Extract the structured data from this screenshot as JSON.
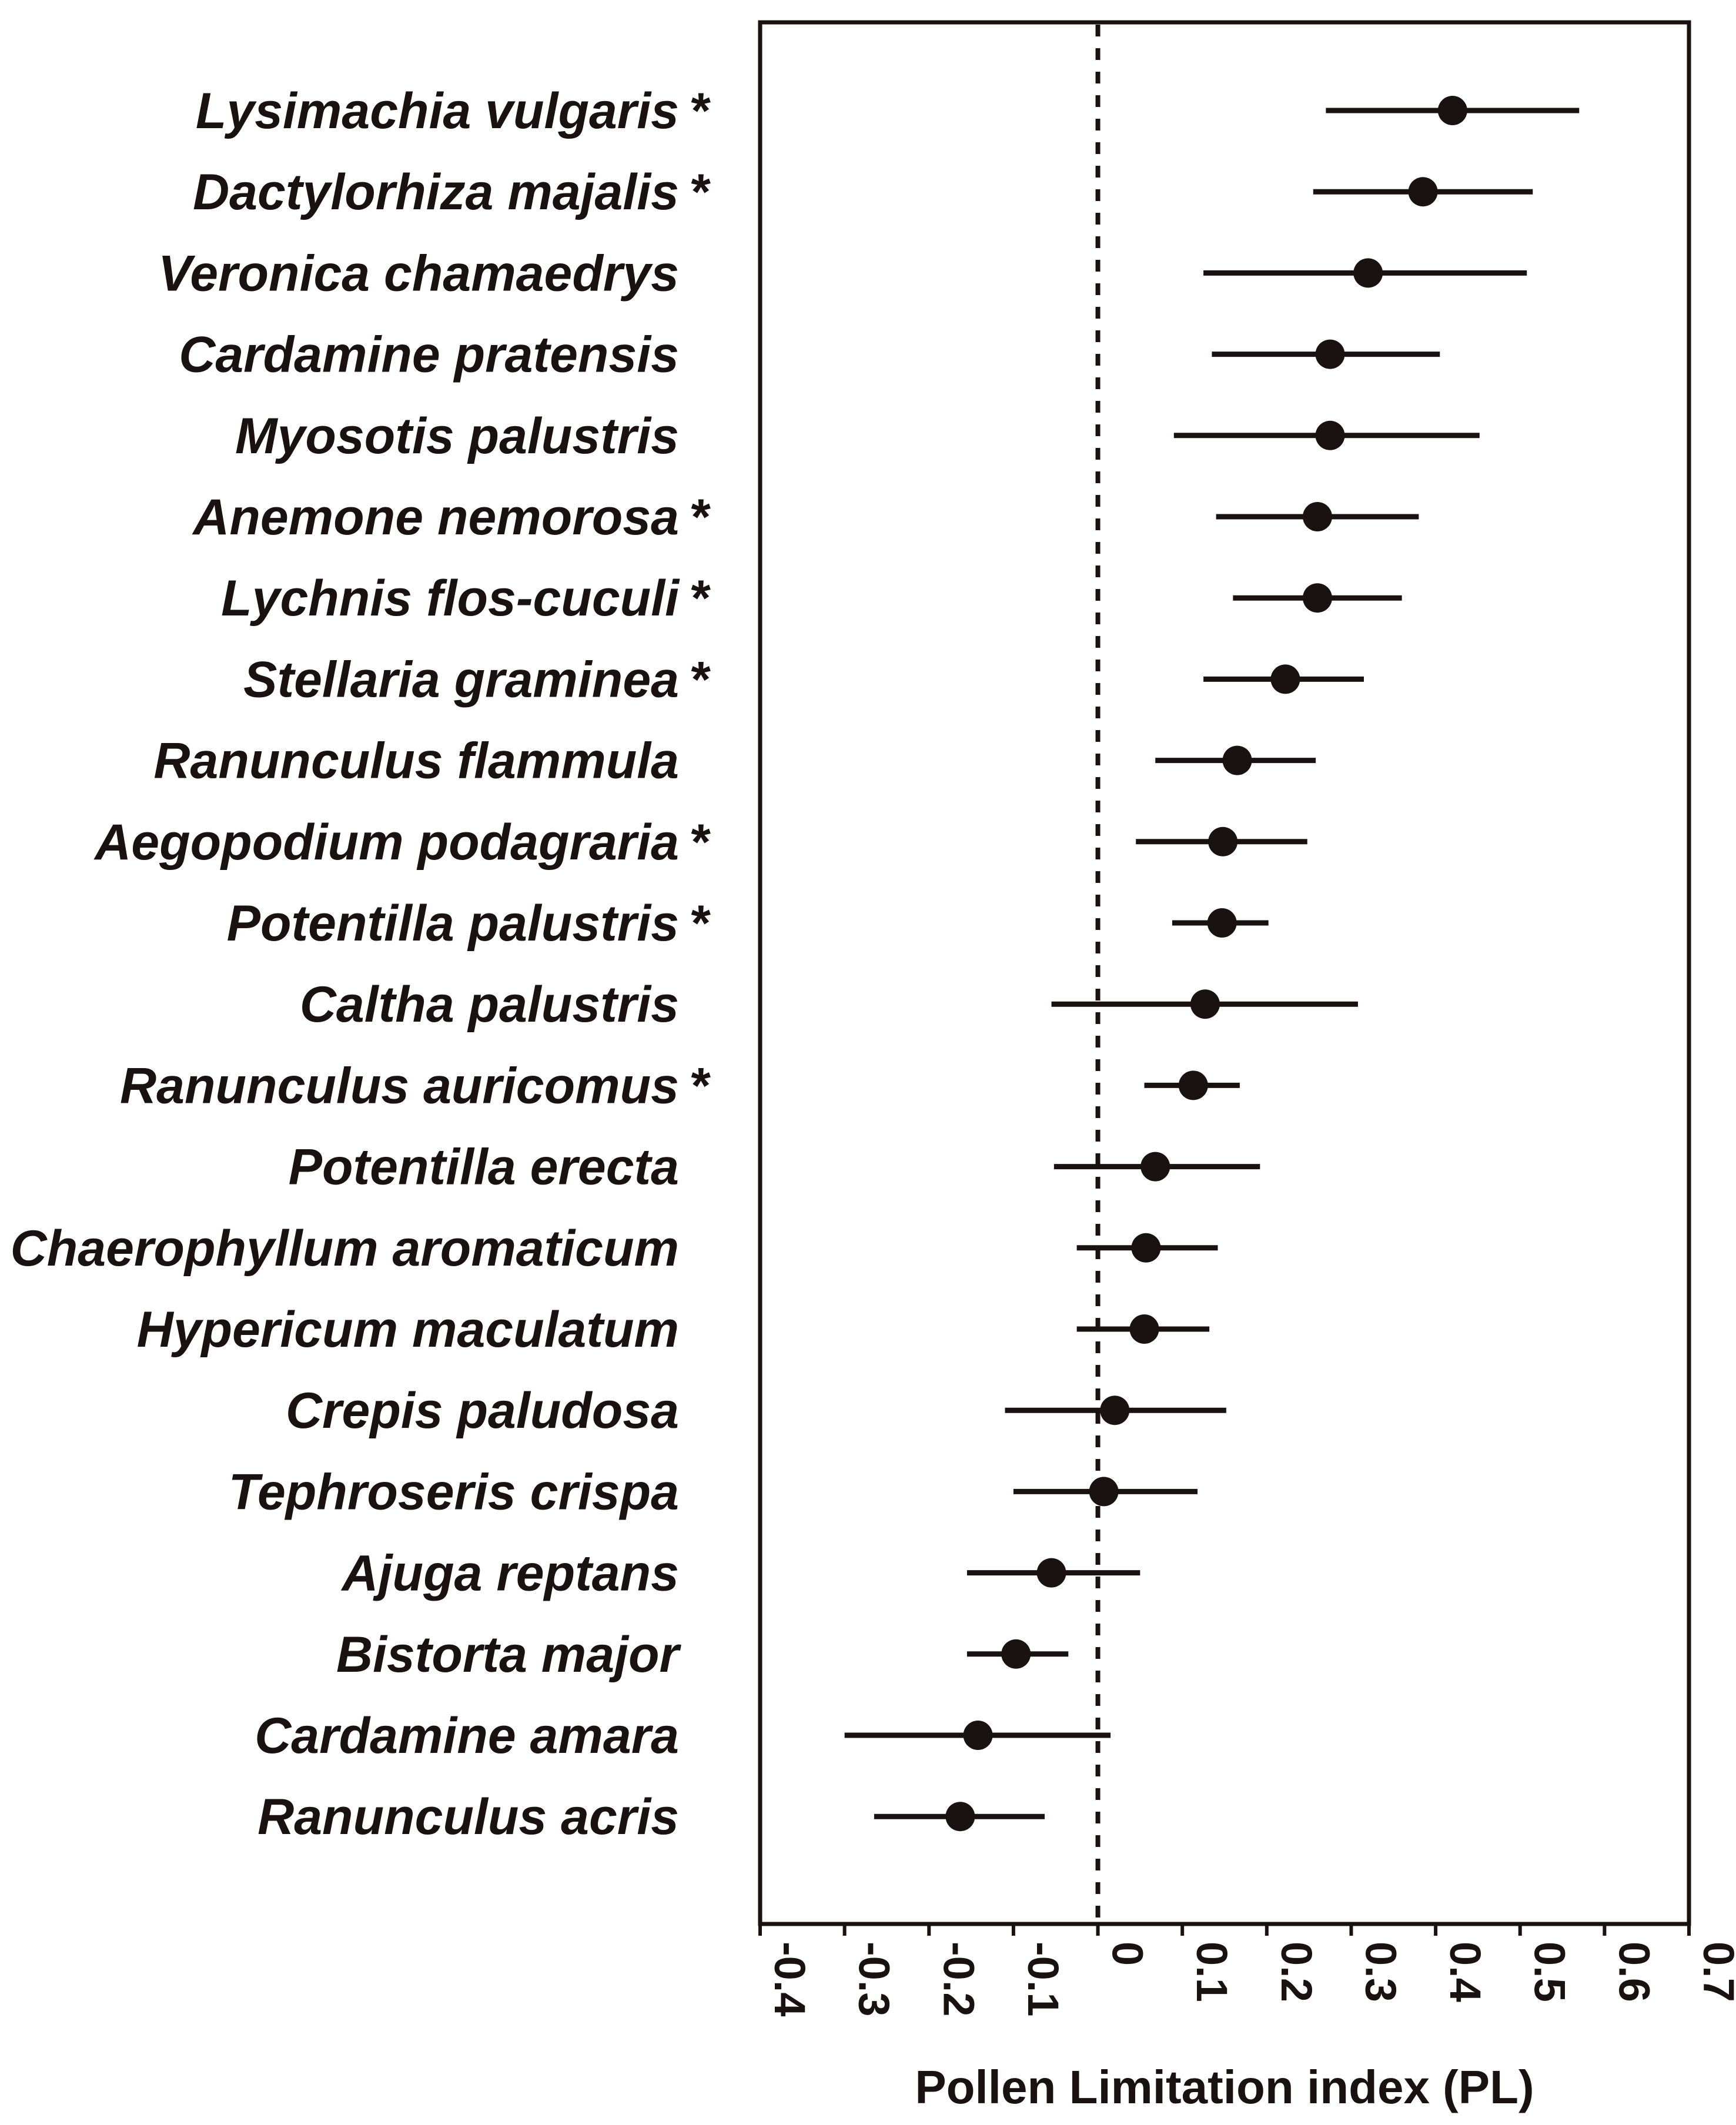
{
  "chart_data": {
    "type": "forest-plot",
    "title": "",
    "xlabel": "Pollen Limitation index (PL)",
    "ylabel": "",
    "xlim": [
      -0.4,
      0.7
    ],
    "xticks": [
      -0.4,
      -0.3,
      -0.2,
      -0.1,
      0,
      0.1,
      0.2,
      0.3,
      0.4,
      0.5,
      0.6,
      0.7
    ],
    "xtick_labels": [
      "-0.4",
      "-0.3",
      "-0.2",
      "-0.1",
      "0",
      "0.1",
      "0.2",
      "0.3",
      "0.4",
      "0.5",
      "0.6",
      "0.7"
    ],
    "reference_line": 0,
    "grid": false,
    "significance_marker": "*",
    "series": [
      {
        "species": "Lysimachia vulgaris",
        "significant": true,
        "pl": 0.42,
        "ci_low": 0.27,
        "ci_high": 0.57
      },
      {
        "species": "Dactylorhiza majalis",
        "significant": true,
        "pl": 0.385,
        "ci_low": 0.255,
        "ci_high": 0.515
      },
      {
        "species": "Veronica chamaedrys",
        "significant": false,
        "pl": 0.32,
        "ci_low": 0.125,
        "ci_high": 0.508
      },
      {
        "species": "Cardamine pratensis",
        "significant": false,
        "pl": 0.275,
        "ci_low": 0.135,
        "ci_high": 0.405
      },
      {
        "species": "Myosotis palustris",
        "significant": false,
        "pl": 0.275,
        "ci_low": 0.09,
        "ci_high": 0.452
      },
      {
        "species": "Anemone nemorosa",
        "significant": true,
        "pl": 0.26,
        "ci_low": 0.14,
        "ci_high": 0.38
      },
      {
        "species": "Lychnis flos-cuculi",
        "significant": true,
        "pl": 0.26,
        "ci_low": 0.16,
        "ci_high": 0.36
      },
      {
        "species": "Stellaria graminea",
        "significant": true,
        "pl": 0.222,
        "ci_low": 0.125,
        "ci_high": 0.315
      },
      {
        "species": "Ranunculus flammula",
        "significant": false,
        "pl": 0.165,
        "ci_low": 0.068,
        "ci_high": 0.258
      },
      {
        "species": "Aegopodium podagraria",
        "significant": true,
        "pl": 0.148,
        "ci_low": 0.045,
        "ci_high": 0.248
      },
      {
        "species": "Potentilla palustris",
        "significant": true,
        "pl": 0.147,
        "ci_low": 0.088,
        "ci_high": 0.202
      },
      {
        "species": "Caltha palustris",
        "significant": false,
        "pl": 0.127,
        "ci_low": -0.055,
        "ci_high": 0.308
      },
      {
        "species": "Ranunculus auricomus",
        "significant": true,
        "pl": 0.113,
        "ci_low": 0.055,
        "ci_high": 0.168
      },
      {
        "species": "Potentilla erecta",
        "significant": false,
        "pl": 0.068,
        "ci_low": -0.052,
        "ci_high": 0.192
      },
      {
        "species": "Chaerophyllum aromaticum",
        "significant": false,
        "pl": 0.057,
        "ci_low": -0.025,
        "ci_high": 0.142
      },
      {
        "species": "Hypericum maculatum",
        "significant": false,
        "pl": 0.055,
        "ci_low": -0.025,
        "ci_high": 0.132
      },
      {
        "species": "Crepis paludosa",
        "significant": false,
        "pl": 0.02,
        "ci_low": -0.11,
        "ci_high": 0.152
      },
      {
        "species": "Tephroseris crispa",
        "significant": false,
        "pl": 0.007,
        "ci_low": -0.1,
        "ci_high": 0.118
      },
      {
        "species": "Ajuga reptans",
        "significant": false,
        "pl": -0.055,
        "ci_low": -0.155,
        "ci_high": 0.05
      },
      {
        "species": "Bistorta major",
        "significant": false,
        "pl": -0.097,
        "ci_low": -0.155,
        "ci_high": -0.035
      },
      {
        "species": "Cardamine amara",
        "significant": false,
        "pl": -0.142,
        "ci_low": -0.3,
        "ci_high": 0.015
      },
      {
        "species": "Ranunculus acris",
        "significant": false,
        "pl": -0.163,
        "ci_low": -0.265,
        "ci_high": -0.063
      }
    ]
  },
  "colors": {
    "ink": "#1a1211",
    "background": "#ffffff"
  }
}
